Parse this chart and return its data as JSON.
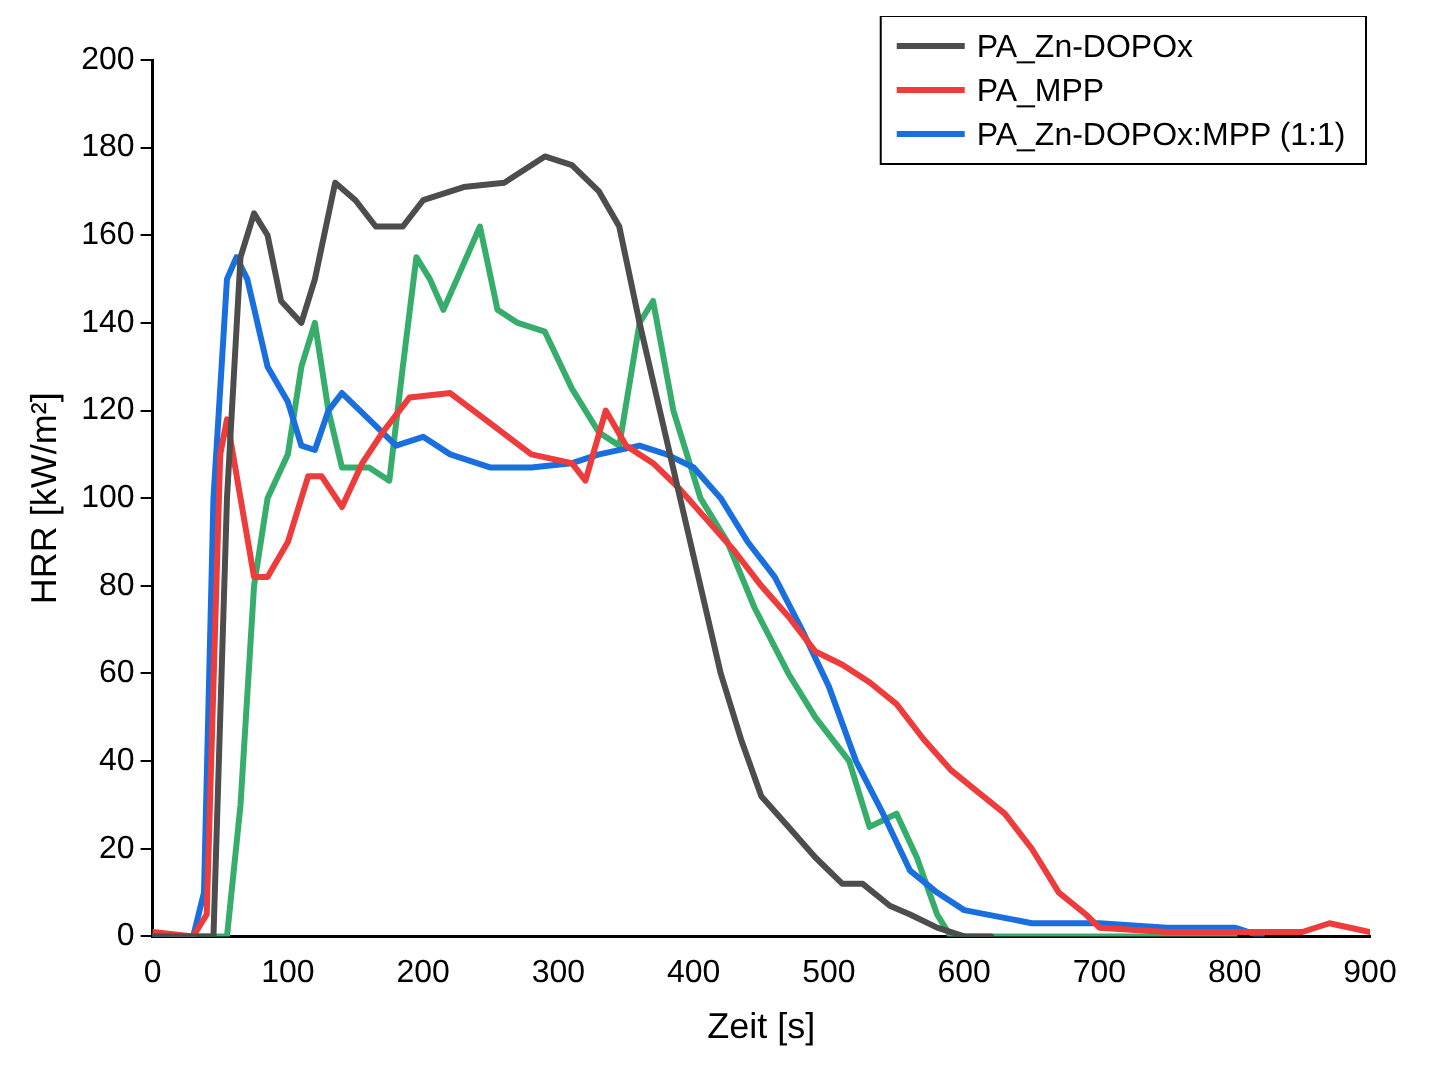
{
  "chart_data": {
    "type": "line",
    "xlabel": "Zeit [s]",
    "ylabel": "HRR [kW/m²]",
    "xlim": [
      0,
      900
    ],
    "xticks": [
      0,
      100,
      200,
      300,
      400,
      500,
      600,
      700,
      800,
      900
    ],
    "ylim": [
      0,
      200
    ],
    "yticks": [
      0,
      20,
      40,
      60,
      80,
      100,
      120,
      140,
      160,
      180,
      200
    ],
    "grid": false,
    "legend": "top right",
    "marker": "none",
    "line_style": "solid",
    "series": [
      {
        "name": "PA_Zn-DOPOx",
        "color": "#4d4d4d",
        "x": [
          0,
          35,
          45,
          55,
          65,
          75,
          85,
          95,
          110,
          120,
          135,
          150,
          165,
          185,
          200,
          230,
          260,
          290,
          310,
          330,
          345,
          360,
          375,
          390,
          405,
          420,
          435,
          450,
          470,
          490,
          510,
          525,
          545,
          560,
          580,
          600,
          620
        ],
        "values": [
          0,
          0,
          0,
          100,
          155,
          165,
          160,
          145,
          140,
          150,
          172,
          168,
          162,
          162,
          168,
          171,
          172,
          178,
          176,
          170,
          162,
          140,
          120,
          100,
          80,
          60,
          45,
          32,
          25,
          18,
          12,
          12,
          7,
          5,
          2,
          0,
          0
        ]
      },
      {
        "name": "PA_MPP",
        "color": "#ee3b3b",
        "x": [
          0,
          30,
          40,
          50,
          55,
          65,
          75,
          85,
          100,
          115,
          125,
          140,
          155,
          170,
          190,
          220,
          250,
          280,
          310,
          320,
          335,
          350,
          370,
          390,
          410,
          430,
          450,
          470,
          490,
          510,
          530,
          550,
          570,
          590,
          610,
          630,
          650,
          670,
          690,
          700,
          750,
          800,
          850,
          870,
          900
        ],
        "values": [
          1,
          0,
          5,
          110,
          118,
          100,
          82,
          82,
          90,
          105,
          105,
          98,
          108,
          115,
          123,
          124,
          117,
          110,
          108,
          104,
          120,
          112,
          108,
          102,
          95,
          88,
          80,
          73,
          65,
          62,
          58,
          53,
          45,
          38,
          33,
          28,
          20,
          10,
          5,
          2,
          1,
          1,
          1,
          3,
          1
        ]
      },
      {
        "name": "PA_Zn-DOPOx:MPP (1:1)",
        "color": "#1a6fdf",
        "x": [
          0,
          30,
          38,
          45,
          55,
          62,
          70,
          85,
          100,
          110,
          120,
          130,
          140,
          160,
          180,
          200,
          220,
          250,
          280,
          310,
          330,
          360,
          380,
          400,
          420,
          440,
          460,
          480,
          500,
          520,
          540,
          560,
          580,
          600,
          650,
          700,
          750,
          800,
          820
        ],
        "values": [
          0,
          0,
          10,
          100,
          150,
          155,
          150,
          130,
          122,
          112,
          111,
          120,
          124,
          118,
          112,
          114,
          110,
          107,
          107,
          108,
          110,
          112,
          110,
          107,
          100,
          90,
          82,
          70,
          57,
          40,
          28,
          15,
          10,
          6,
          3,
          3,
          2,
          2,
          0
        ]
      },
      {
        "color": "#37ad6b",
        "x": [
          0,
          55,
          65,
          75,
          85,
          100,
          110,
          120,
          130,
          140,
          160,
          175,
          185,
          195,
          205,
          215,
          225,
          242,
          255,
          270,
          290,
          310,
          330,
          345,
          360,
          370,
          385,
          405,
          425,
          445,
          470,
          490,
          515,
          530,
          550,
          565,
          580,
          590,
          700,
          800
        ],
        "values": [
          0,
          0,
          30,
          80,
          100,
          110,
          130,
          140,
          120,
          107,
          107,
          104,
          130,
          155,
          150,
          143,
          150,
          162,
          143,
          140,
          138,
          125,
          115,
          112,
          140,
          145,
          120,
          100,
          90,
          75,
          60,
          50,
          40,
          25,
          28,
          18,
          5,
          0,
          0,
          0
        ]
      }
    ]
  }
}
